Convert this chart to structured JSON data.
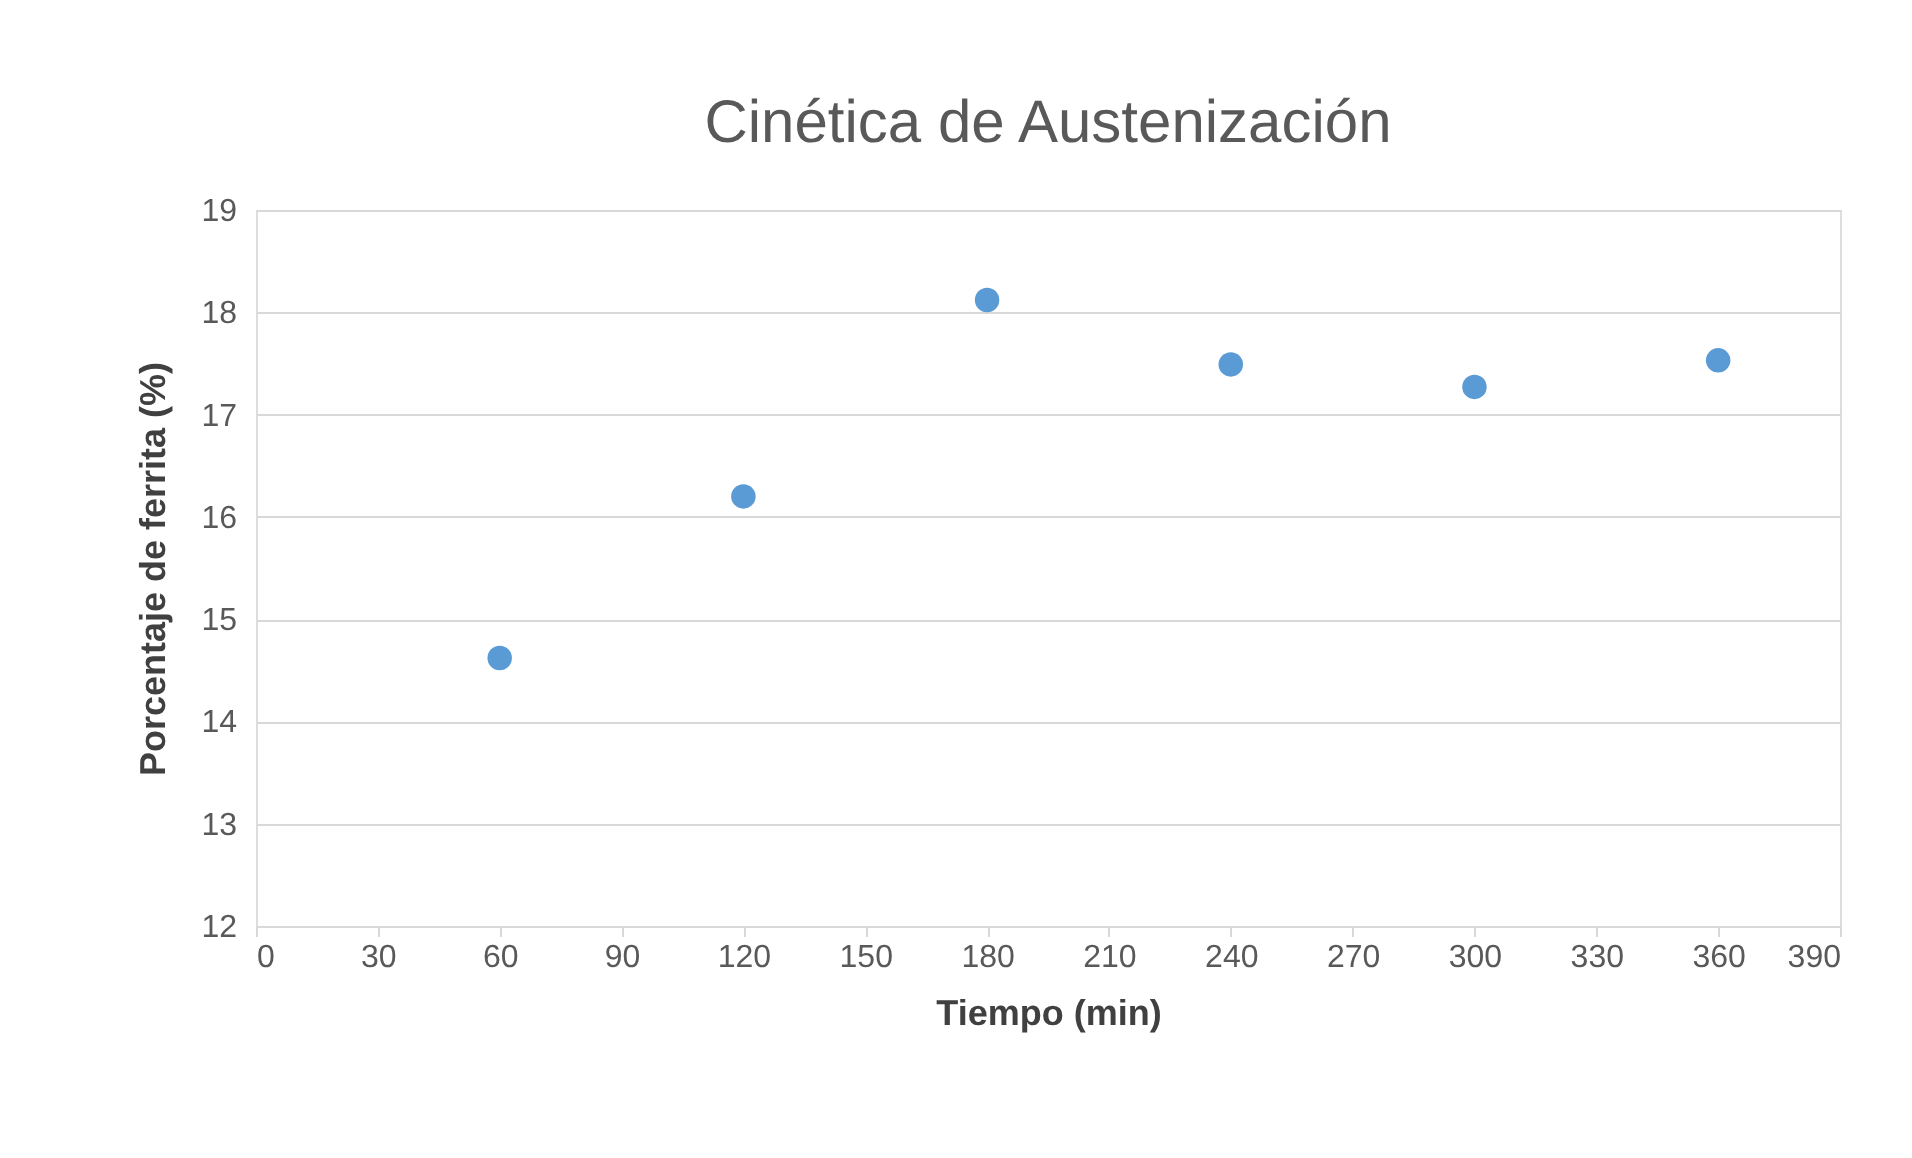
{
  "chart_data": {
    "type": "scatter",
    "title": "Cinética de Austenización",
    "xlabel": "Tiempo (min)",
    "ylabel": "Porcentaje de ferrita  (%)",
    "x": [
      60,
      120,
      180,
      240,
      300,
      360
    ],
    "series": [
      {
        "color": "#5b9bd5",
        "values": [
          14.62,
          16.2,
          18.12,
          17.49,
          17.27,
          17.53
        ]
      }
    ],
    "xlim": [
      0,
      390
    ],
    "xticks": [
      0,
      30,
      60,
      90,
      120,
      150,
      180,
      210,
      240,
      270,
      300,
      330,
      360,
      390
    ],
    "ylim": [
      12,
      19
    ],
    "yticks": [
      12,
      13,
      14,
      15,
      16,
      17,
      18,
      19
    ],
    "grid": "y",
    "marker": "circle"
  }
}
